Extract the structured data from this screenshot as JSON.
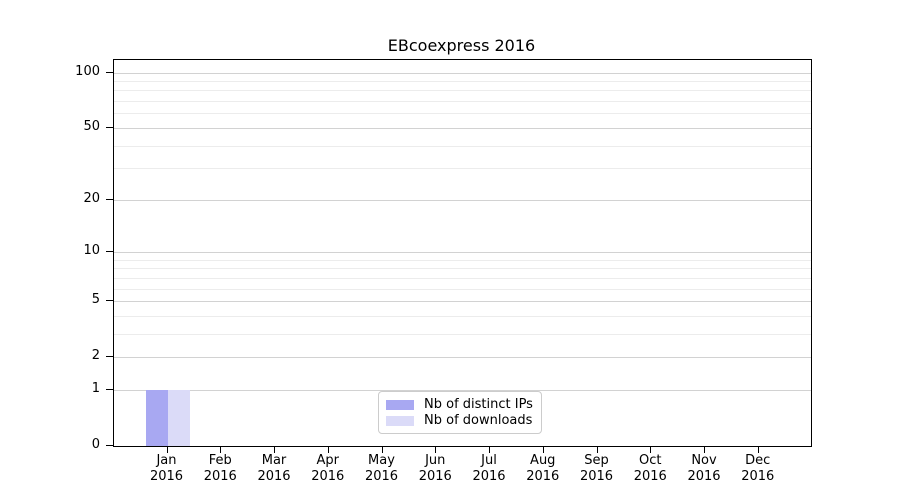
{
  "figure": {
    "background": "#ffffff"
  },
  "chart_data": {
    "type": "bar",
    "title": "EBcoexpress 2016",
    "year": "2016",
    "categories": [
      "Jan",
      "Feb",
      "Mar",
      "Apr",
      "May",
      "Jun",
      "Jul",
      "Aug",
      "Sep",
      "Oct",
      "Nov",
      "Dec"
    ],
    "series": [
      {
        "name": "Nb of distinct IPs",
        "color": "#a8a8f2",
        "values": [
          1,
          0,
          0,
          0,
          0,
          0,
          0,
          0,
          0,
          0,
          0,
          0
        ]
      },
      {
        "name": "Nb of downloads",
        "color": "#dbdbf8",
        "values": [
          1,
          0,
          0,
          0,
          0,
          0,
          0,
          0,
          0,
          0,
          0,
          0
        ]
      }
    ],
    "y_scale": "log1p",
    "ylim": [
      0,
      117
    ],
    "y_major_ticks": [
      0,
      1,
      2,
      5,
      10,
      20,
      50,
      100
    ],
    "y_minor_gridlines": [
      3,
      4,
      6,
      7,
      8,
      9,
      30,
      40,
      60,
      70,
      80,
      90
    ],
    "grid": "on",
    "legend_position": "bottom-center",
    "colors": {
      "major_grid": "#d2d2d2",
      "minor_grid": "#ececec",
      "axis": "#000000",
      "text": "#000000"
    }
  }
}
